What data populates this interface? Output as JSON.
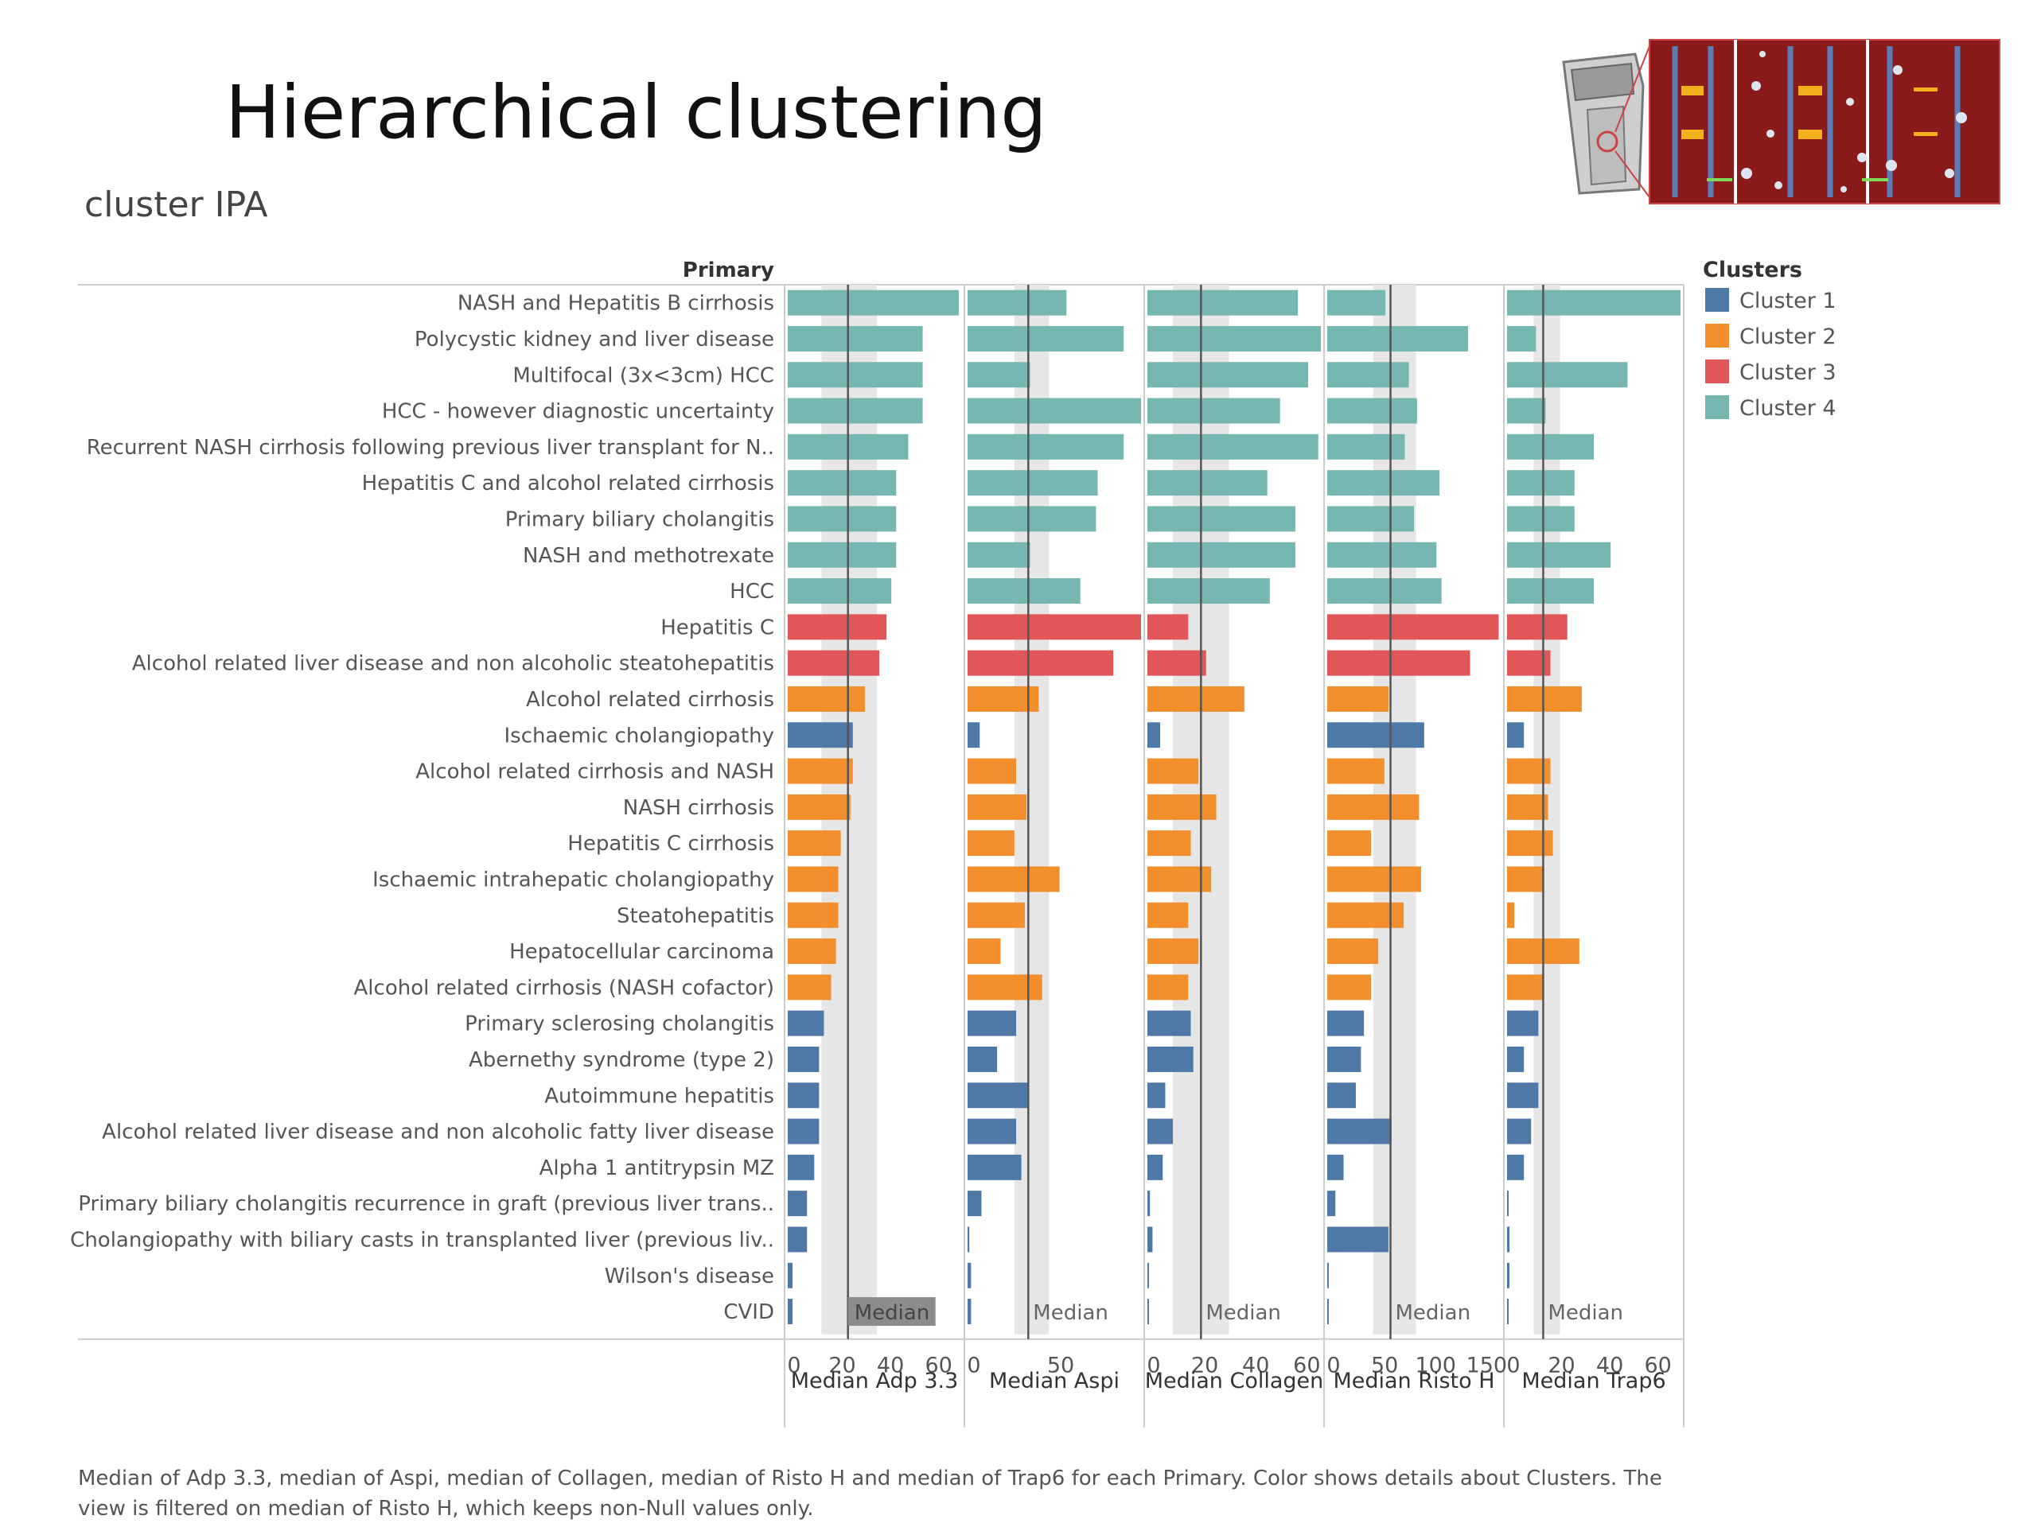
{
  "slide": {
    "title": "Hierarchical clustering",
    "subtitle": "cluster IPA",
    "footer": "Median of Adp 3.3, median of Aspi, median of Collagen, median of Risto H and median of Trap6 for each Primary.  Color shows details about Clusters. The view is filtered on median of Risto H, which keeps non-Null values only."
  },
  "icons": {
    "thumbnail": "platelet-aggregometry-illustration"
  },
  "colors": {
    "Cluster 1": "#4e79a7",
    "Cluster 2": "#f28e2b",
    "Cluster 3": "#e15759",
    "Cluster 4": "#76b7b2",
    "median_line": "#555555",
    "median_band": "#e6e6e6"
  },
  "chart_data": {
    "type": "bar",
    "row_header": "Primary",
    "legend": {
      "title": "Clusters",
      "position": "top-right",
      "entries": [
        "Cluster 1",
        "Cluster 2",
        "Cluster 3",
        "Cluster 4"
      ]
    },
    "median_label": "Median",
    "categories": [
      "NASH and Hepatitis B cirrhosis",
      "Polycystic kidney and liver disease",
      "Multifocal (3x<3cm) HCC",
      "HCC - however diagnostic uncertainty",
      "Recurrent NASH cirrhosis following previous liver transplant for N..",
      "Hepatitis C and alcohol related cirrhosis",
      "Primary biliary cholangitis",
      "NASH and methotrexate",
      "HCC",
      "Hepatitis C",
      "Alcohol related liver disease and non alcoholic steatohepatitis",
      "Alcohol related cirrhosis",
      "Ischaemic cholangiopathy",
      "Alcohol related cirrhosis and NASH",
      "NASH cirrhosis",
      "Hepatitis C cirrhosis",
      "Ischaemic intrahepatic cholangiopathy",
      "Steatohepatitis",
      "Hepatocellular carcinoma",
      "Alcohol related cirrhosis (NASH cofactor)",
      "Primary sclerosing cholangitis",
      "Abernethy syndrome (type 2)",
      "Autoimmune hepatitis",
      "Alcohol related liver disease and non alcoholic fatty liver disease",
      "Alpha 1 antitrypsin MZ",
      "Primary biliary cholangitis recurrence in graft (previous liver trans..",
      "Cholangiopathy with biliary casts in transplanted liver (previous liv..",
      "Wilson's disease",
      "CVID"
    ],
    "clusters": [
      "Cluster 4",
      "Cluster 4",
      "Cluster 4",
      "Cluster 4",
      "Cluster 4",
      "Cluster 4",
      "Cluster 4",
      "Cluster 4",
      "Cluster 4",
      "Cluster 3",
      "Cluster 3",
      "Cluster 2",
      "Cluster 1",
      "Cluster 2",
      "Cluster 2",
      "Cluster 2",
      "Cluster 2",
      "Cluster 2",
      "Cluster 2",
      "Cluster 2",
      "Cluster 1",
      "Cluster 1",
      "Cluster 1",
      "Cluster 1",
      "Cluster 1",
      "Cluster 1",
      "Cluster 1",
      "Cluster 1",
      "Cluster 1"
    ],
    "panels": [
      {
        "measure": "Median Adp 3.3",
        "xlim": [
          0,
          72
        ],
        "ticks": [
          "0",
          "20",
          "40",
          "60"
        ],
        "tick_values": [
          0,
          20,
          40,
          60
        ],
        "median": 25,
        "band": [
          14,
          37
        ],
        "median_highlight": true,
        "values": [
          71,
          56,
          56,
          56,
          50,
          45,
          45,
          45,
          43,
          41,
          38,
          32,
          27,
          27,
          26,
          22,
          21,
          21,
          20,
          18,
          15,
          13,
          13,
          13,
          11,
          8,
          8,
          2,
          2
        ]
      },
      {
        "measure": "Median Aspi",
        "xlim": [
          0,
          100
        ],
        "ticks": [
          "0",
          "50"
        ],
        "tick_values": [
          0,
          50
        ],
        "median": 35,
        "band": [
          27,
          47
        ],
        "values": [
          57,
          90,
          36,
          100,
          90,
          75,
          74,
          36,
          65,
          100,
          84,
          41,
          7,
          28,
          34,
          27,
          53,
          33,
          19,
          43,
          28,
          17,
          35,
          28,
          31,
          8,
          1,
          2,
          2
        ]
      },
      {
        "measure": "Median Collagen",
        "xlim": [
          0,
          68
        ],
        "ticks": [
          "0",
          "20",
          "40",
          "60"
        ],
        "tick_values": [
          0,
          20,
          40,
          60
        ],
        "median": 21,
        "band": [
          10,
          32
        ],
        "values": [
          59,
          68,
          63,
          52,
          67,
          47,
          58,
          58,
          48,
          16,
          23,
          38,
          5,
          20,
          27,
          17,
          25,
          16,
          20,
          16,
          17,
          18,
          7,
          10,
          6,
          1,
          2,
          0,
          0
        ]
      },
      {
        "measure": "Median Risto H",
        "xlim": [
          0,
          170
        ],
        "ticks": [
          "0",
          "50",
          "100",
          "150"
        ],
        "tick_values": [
          0,
          50,
          100,
          150
        ],
        "median": 62,
        "band": [
          45,
          87
        ],
        "values": [
          57,
          138,
          80,
          88,
          76,
          110,
          85,
          107,
          112,
          168,
          140,
          60,
          95,
          56,
          90,
          43,
          92,
          75,
          50,
          43,
          36,
          33,
          28,
          63,
          16,
          8,
          60,
          1,
          0
        ]
      },
      {
        "measure": "Median Trap6",
        "xlim": [
          0,
          72
        ],
        "ticks": [
          "0",
          "20",
          "40",
          "60"
        ],
        "tick_values": [
          0,
          20,
          40,
          60
        ],
        "median": 15,
        "band": [
          11,
          22
        ],
        "values": [
          72,
          12,
          50,
          16,
          36,
          28,
          28,
          43,
          36,
          25,
          18,
          31,
          7,
          18,
          17,
          19,
          15,
          3,
          30,
          15,
          13,
          7,
          13,
          10,
          7,
          0,
          1,
          1,
          0
        ]
      }
    ]
  }
}
